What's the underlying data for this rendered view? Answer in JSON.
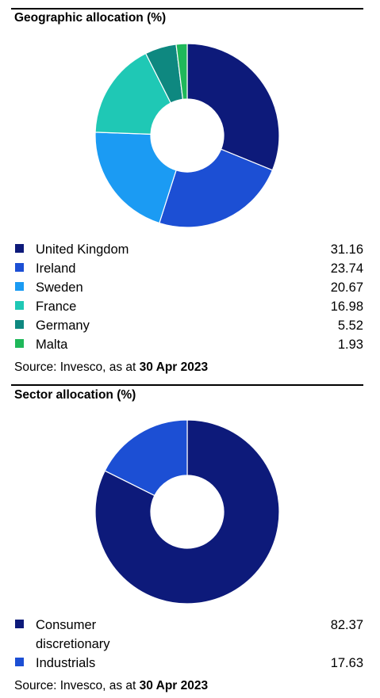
{
  "chart_data": [
    {
      "type": "pie",
      "style": "donut",
      "title": "Geographic allocation (%)",
      "categories": [
        "United Kingdom",
        "Ireland",
        "Sweden",
        "France",
        "Germany",
        "Malta"
      ],
      "values": [
        31.16,
        23.74,
        20.67,
        16.98,
        5.52,
        1.93
      ],
      "value_labels": [
        "31.16",
        "23.74",
        "20.67",
        "16.98",
        "5.52",
        "1.93"
      ],
      "colors": [
        "#0d1a7a",
        "#1c4fd4",
        "#1b9bf3",
        "#1fc8b5",
        "#0e8880",
        "#1fb85a"
      ],
      "legend": "bottom",
      "source_prefix": "Source: Invesco, as at ",
      "source_date": "30 Apr 2023"
    },
    {
      "type": "pie",
      "style": "donut",
      "title": "Sector allocation (%)",
      "categories": [
        "Consumer discretionary",
        "Industrials"
      ],
      "label_lines": [
        [
          "Consumer",
          "discretionary"
        ],
        [
          "Industrials"
        ]
      ],
      "values": [
        82.37,
        17.63
      ],
      "value_labels": [
        "82.37",
        "17.63"
      ],
      "colors": [
        "#0d1a7a",
        "#1c4fd4"
      ],
      "legend": "bottom",
      "source_prefix": "Source: Invesco, as at ",
      "source_date": "30 Apr 2023"
    }
  ]
}
